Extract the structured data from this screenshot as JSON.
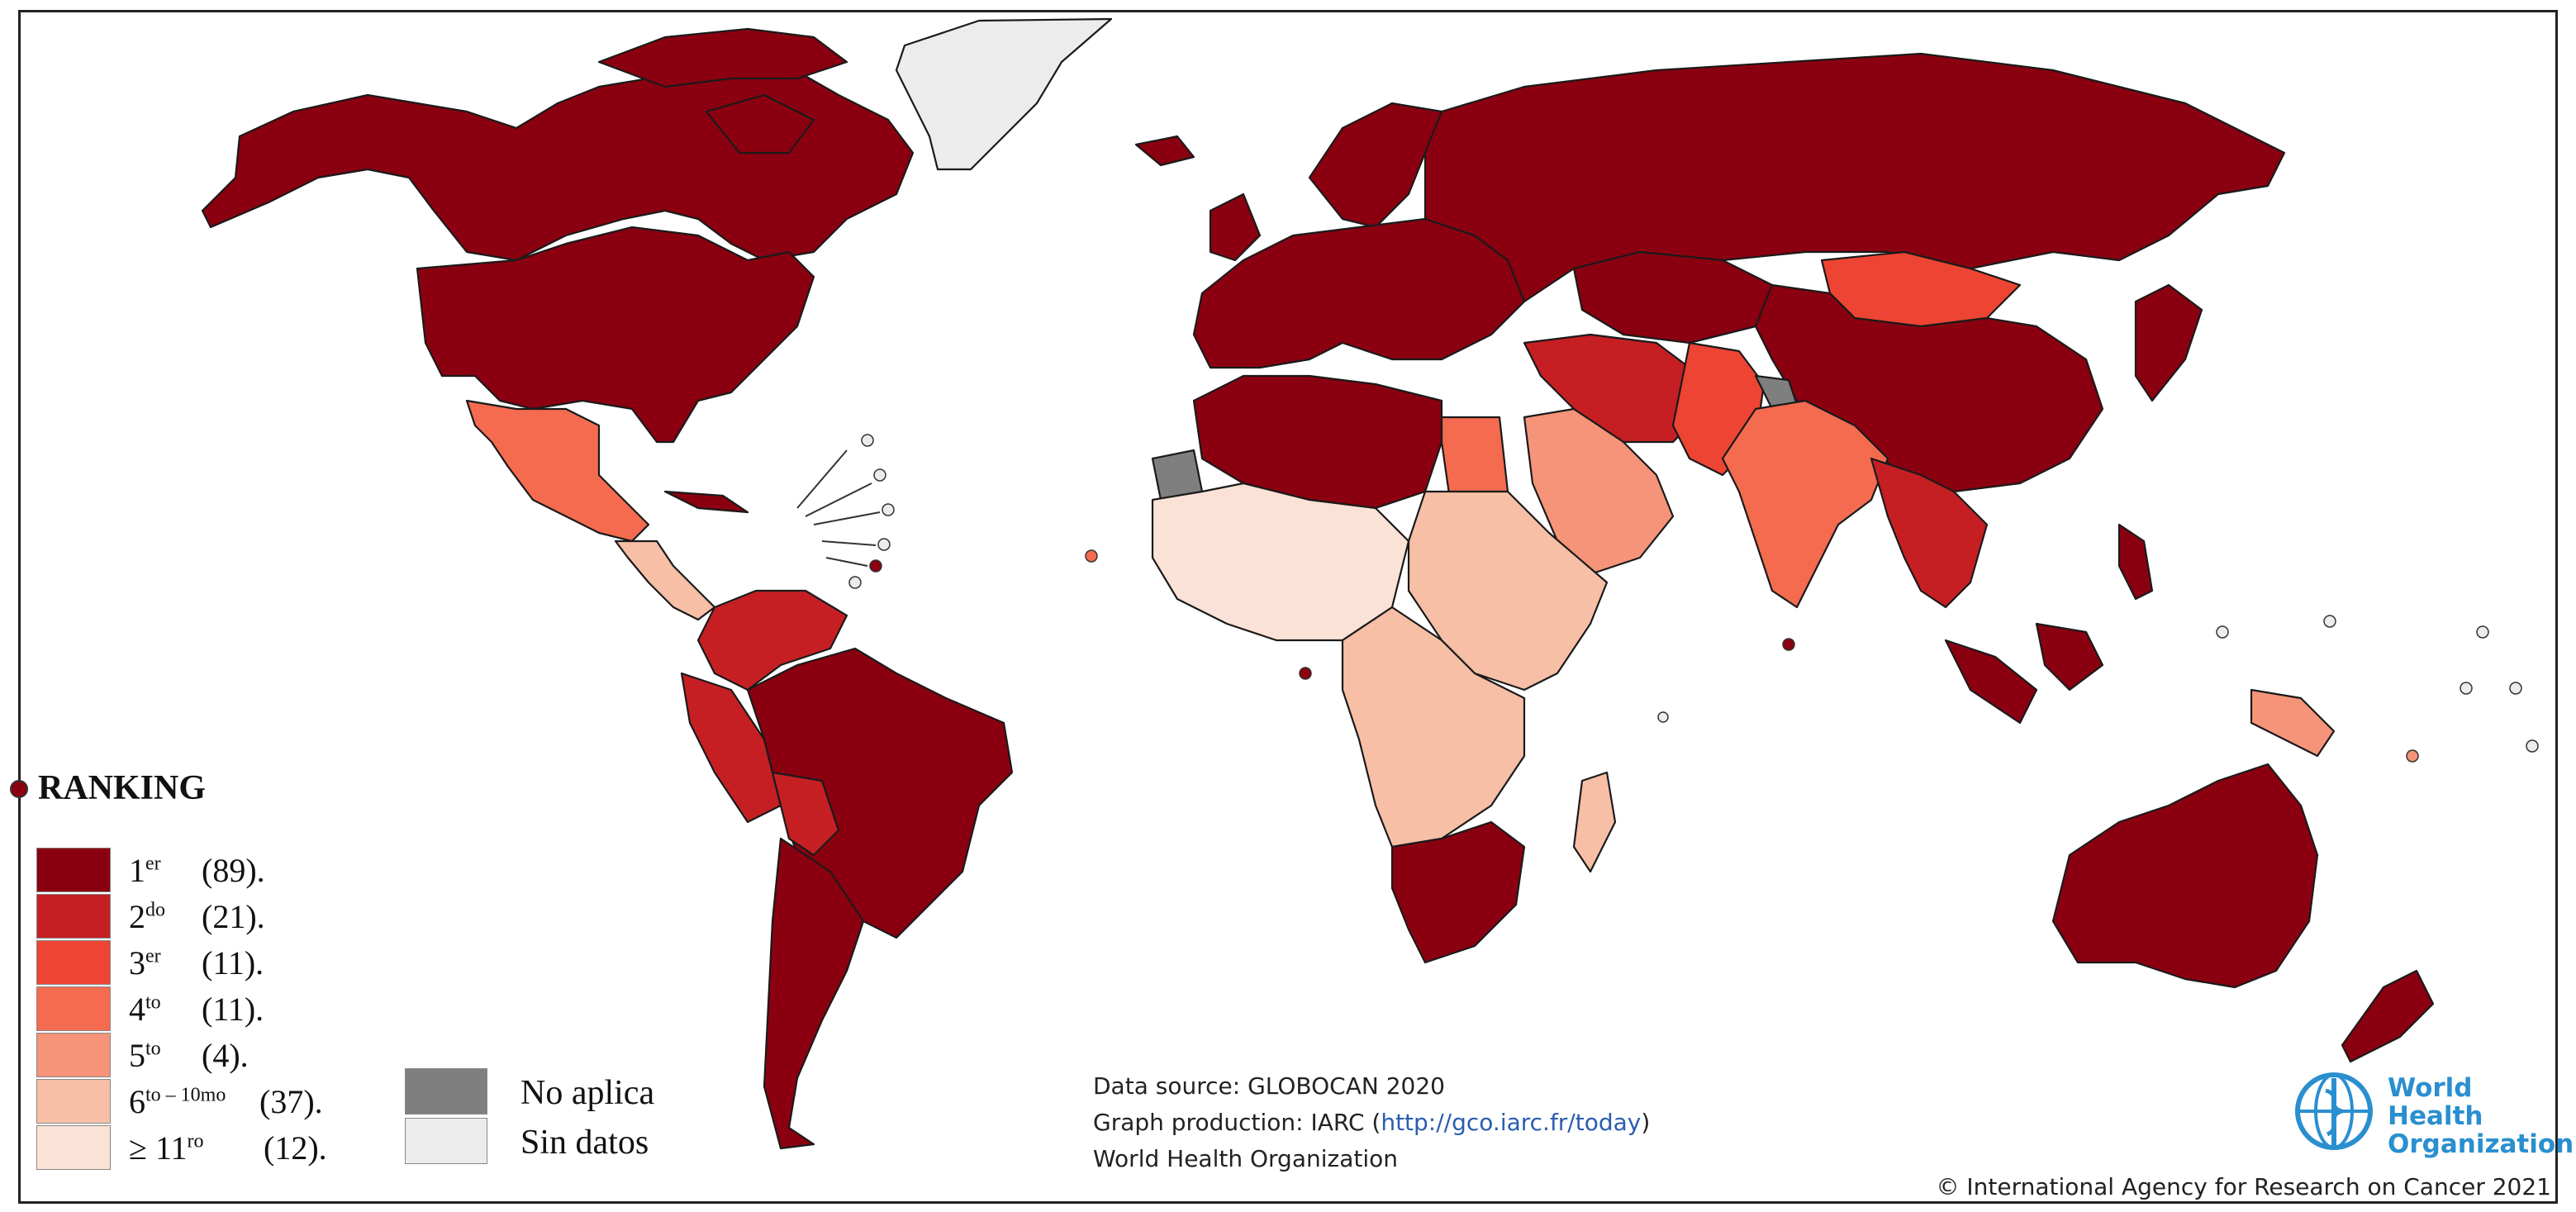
{
  "map": {
    "colors": {
      "rank1": "#8b0010",
      "rank2": "#c51f24",
      "rank3": "#ee4433",
      "rank4": "#f46b50",
      "rank5": "#f59478",
      "rank6to10": "#f6bfa6",
      "rank11plus": "#fbe2d6",
      "not_applicable": "#7f7f7f",
      "no_data": "#ececec",
      "ocean": "#ffffff",
      "border": "#1a1a1a"
    },
    "legend": {
      "title": "RANKING",
      "items": [
        {
          "rank": "1",
          "suffix": "er",
          "count": "(89).",
          "color": "#8b0010"
        },
        {
          "rank": "2",
          "suffix": "do",
          "count": "(21).",
          "color": "#c51f24"
        },
        {
          "rank": "3",
          "suffix": "er",
          "count": "(11).",
          "color": "#ee4433"
        },
        {
          "rank": "4",
          "suffix": "to",
          "count": "(11).",
          "color": "#f46b50"
        },
        {
          "rank": "5",
          "suffix": "to",
          "count": "(4).",
          "color": "#f59478"
        },
        {
          "rank": "6",
          "suffix": "to – 10mo",
          "count": "(37).",
          "color": "#f6bfa6"
        },
        {
          "rank": "≥ 11",
          "suffix": "ro",
          "count": "(12).",
          "color": "#fbe2d6"
        }
      ],
      "not_applicable": {
        "label": "No aplica",
        "color": "#7f7f7f"
      },
      "no_data": {
        "label": "Sin datos",
        "color": "#ececec"
      }
    }
  },
  "source": {
    "line1": "Data source: GLOBOCAN 2020",
    "line2_prefix": "Graph production: IARC (",
    "line2_link": "http://gco.iarc.fr/today",
    "line2_suffix": ")",
    "line3": "World Health Organization"
  },
  "who": {
    "line1": "World Health",
    "line2": "Organization",
    "icon": "who-emblem-icon"
  },
  "copyright": "© International Agency for Research on Cancer 2021"
}
